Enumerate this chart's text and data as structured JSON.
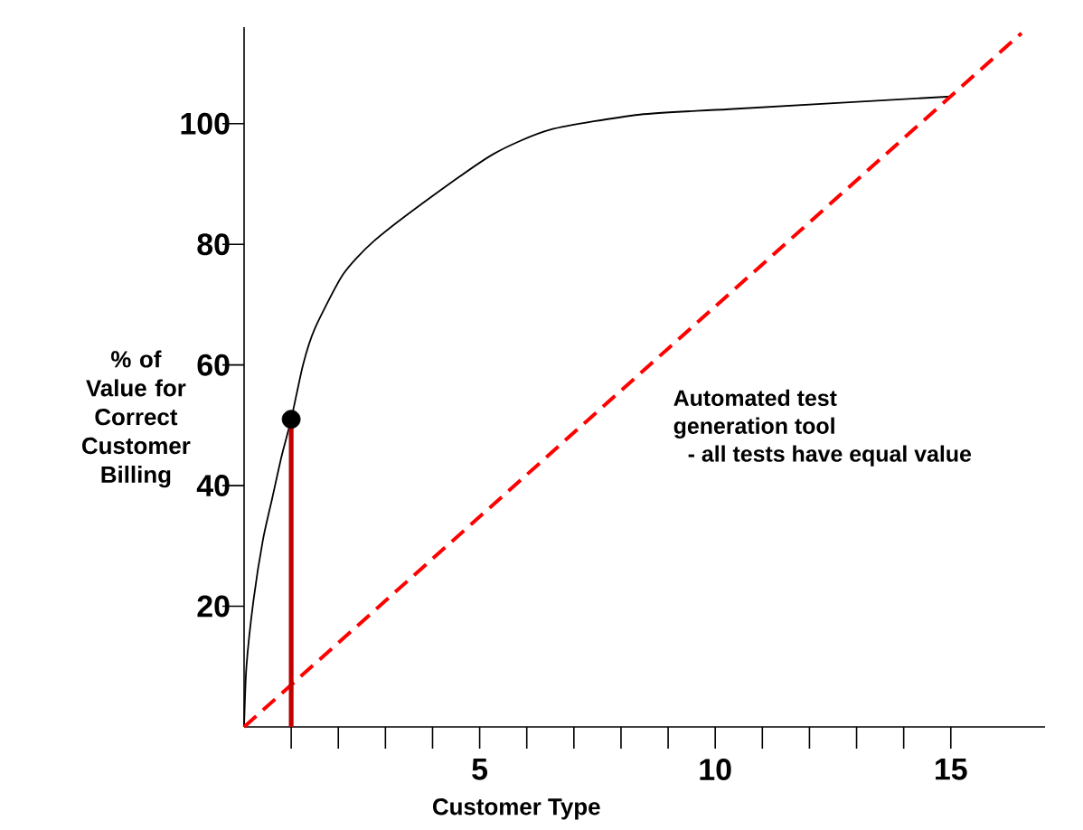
{
  "chart_data": {
    "type": "line",
    "xlabel": "Customer Type",
    "ylabel": "% of Value for Correct Customer Billing",
    "xlim": [
      0,
      17
    ],
    "ylim": [
      0,
      116
    ],
    "xticks": [
      {
        "value": 1,
        "label": null
      },
      {
        "value": 2,
        "label": null
      },
      {
        "value": 3,
        "label": null
      },
      {
        "value": 4,
        "label": null
      },
      5,
      {
        "value": 6,
        "label": null
      },
      {
        "value": 7,
        "label": null
      },
      {
        "value": 8,
        "label": null
      },
      {
        "value": 9,
        "label": null
      },
      10,
      {
        "value": 11,
        "label": null
      },
      {
        "value": 12,
        "label": null
      },
      {
        "value": 13,
        "label": null
      },
      {
        "value": 14,
        "label": null
      },
      15
    ],
    "yticks": [
      20,
      40,
      60,
      80,
      100
    ],
    "series": [
      {
        "color": "#000000",
        "marker": "none",
        "line_style": "solid",
        "x": [
          0,
          0.05,
          0.2,
          0.4,
          0.6,
          0.8,
          1,
          1.25,
          1.5,
          2.1,
          2.75,
          4,
          5.3,
          6.5,
          8.4,
          10.3,
          15
        ],
        "values": [
          0,
          10,
          21,
          31,
          38,
          45,
          51,
          60,
          66,
          75,
          80.5,
          88,
          95,
          99,
          101.5,
          102.4,
          104.5
        ]
      },
      {
        "type": "line",
        "color": "#ff0000",
        "marker": "none",
        "line_style": "dashed",
        "x": [
          0,
          16.5
        ],
        "values": [
          0,
          115
        ]
      },
      {
        "type": "line",
        "color": "#c00000",
        "marker": "none",
        "line_style": "solid",
        "x": [
          1,
          1
        ],
        "values": [
          0,
          51
        ]
      },
      {
        "type": "scatter",
        "color": "#000000",
        "marker": "circle",
        "x": [
          1
        ],
        "values": [
          51
        ]
      }
    ],
    "annotations": [
      "Automated test",
      "generation tool",
      "- all tests have equal value"
    ]
  }
}
